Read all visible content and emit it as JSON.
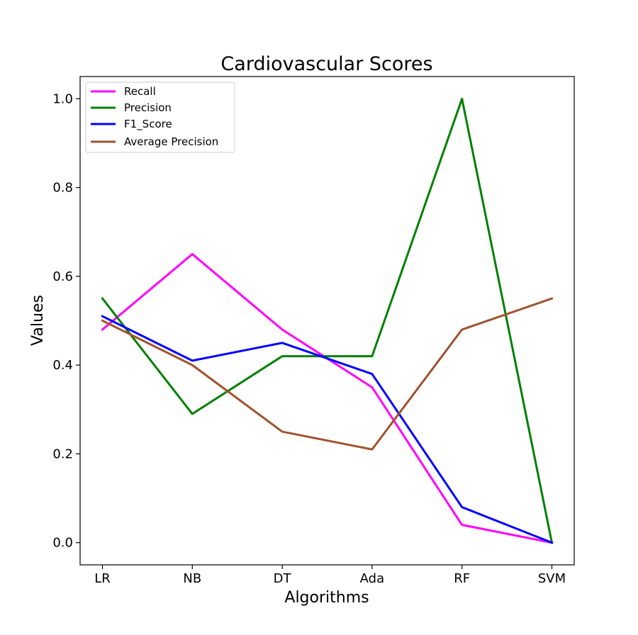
{
  "chart_data": {
    "type": "line",
    "title": "Cardiovascular Scores",
    "xlabel": "Algorithms",
    "ylabel": "Values",
    "categories": [
      "LR",
      "NB",
      "DT",
      "Ada",
      "RF",
      "SVM"
    ],
    "ylim": [
      -0.05,
      1.05
    ],
    "yticks": [
      0.0,
      0.2,
      0.4,
      0.6,
      0.8,
      1.0
    ],
    "ytick_labels": [
      "0.0",
      "0.2",
      "0.4",
      "0.6",
      "0.8",
      "1.0"
    ],
    "grid": false,
    "legend_position": "top-left",
    "series": [
      {
        "name": "Recall",
        "color": "#ff00ff",
        "values": [
          0.48,
          0.65,
          0.48,
          0.35,
          0.04,
          0.0
        ]
      },
      {
        "name": "Precision",
        "color": "#008000",
        "values": [
          0.55,
          0.29,
          0.42,
          0.42,
          1.0,
          0.0
        ]
      },
      {
        "name": "F1_Score",
        "color": "#0000ff",
        "values": [
          0.51,
          0.41,
          0.45,
          0.38,
          0.08,
          0.0
        ]
      },
      {
        "name": "Average Precision",
        "color": "#a0522d",
        "values": [
          0.5,
          0.4,
          0.25,
          0.21,
          0.48,
          0.55
        ]
      }
    ]
  }
}
